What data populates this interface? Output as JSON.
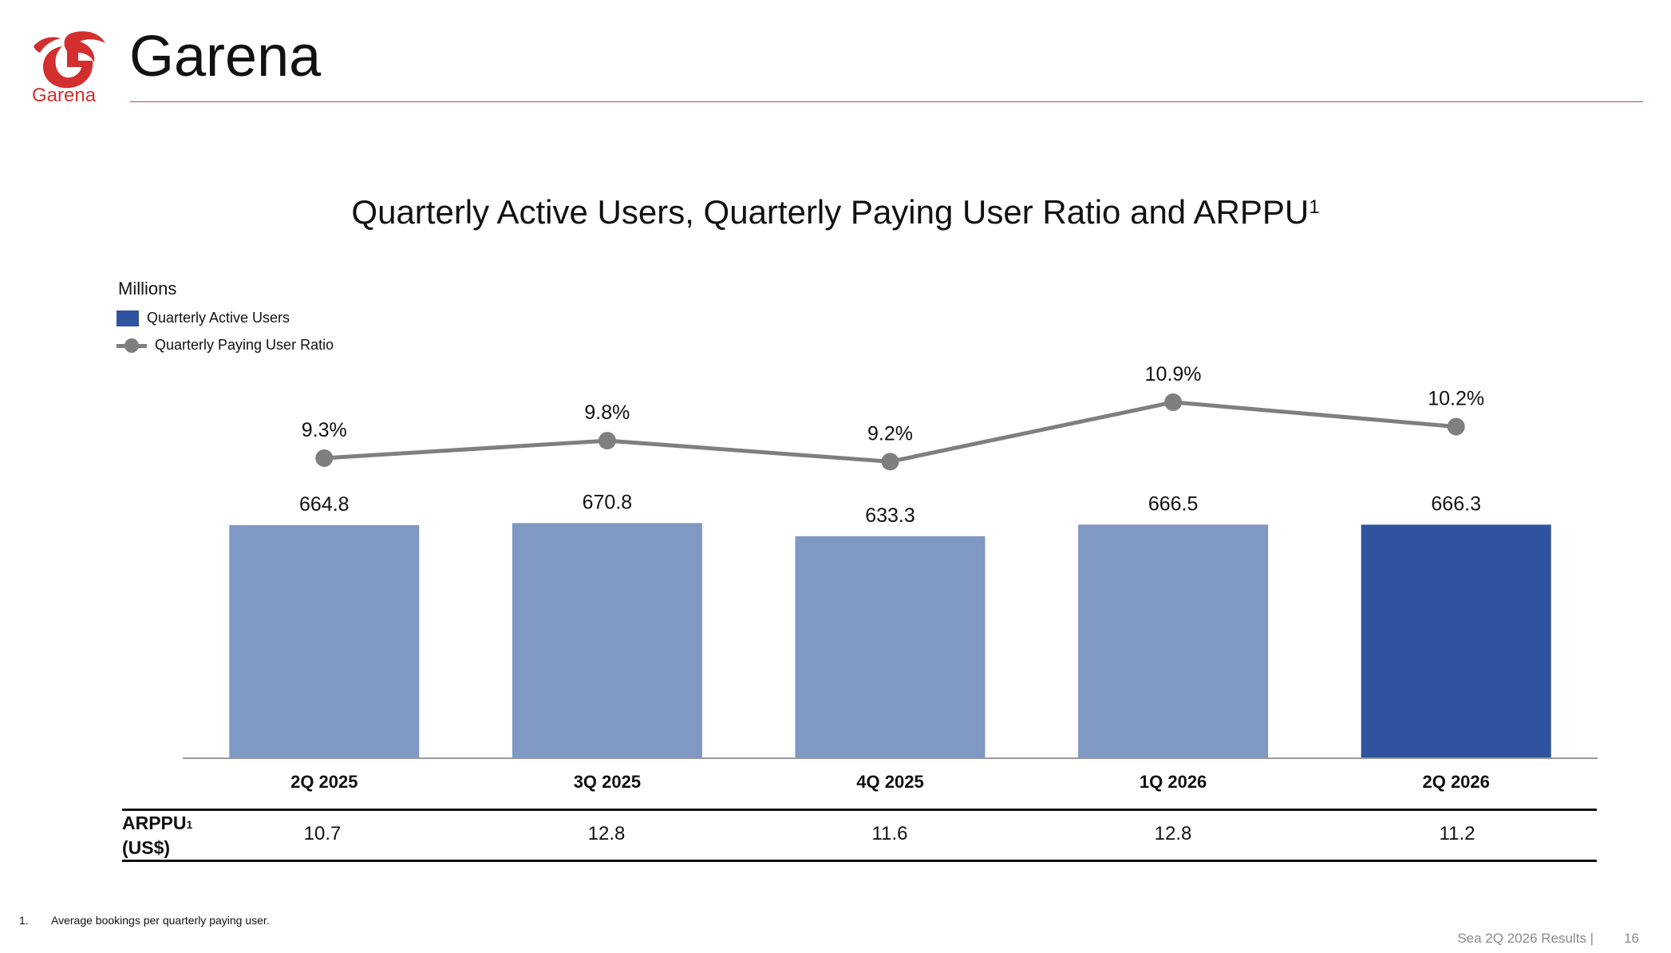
{
  "header": {
    "brand": "Garena",
    "logo_text": "Garena",
    "accent_color": "#e23b3b"
  },
  "chart_data": {
    "type": "bar",
    "title": "Quarterly Active Users, Quarterly Paying User Ratio and ARPPU",
    "title_superscript": "1",
    "units": "Millions",
    "categories": [
      "2Q 2025",
      "3Q 2025",
      "4Q 2025",
      "1Q 2026",
      "2Q 2026"
    ],
    "series": [
      {
        "name": "Quarterly Active Users",
        "values": [
          664.8,
          670.8,
          633.3,
          666.5,
          666.3
        ],
        "labels": [
          "664.8",
          "670.8",
          "633.3",
          "666.5",
          "666.3"
        ],
        "colors": [
          "#7f98c4",
          "#7f98c4",
          "#7f98c4",
          "#7f98c4",
          "#2f539e"
        ]
      },
      {
        "name": "Quarterly Paying User Ratio",
        "type": "line",
        "values": [
          9.3,
          9.8,
          9.2,
          10.9,
          10.2
        ],
        "labels": [
          "9.3%",
          "9.8%",
          "9.2%",
          "10.9%",
          "10.2%"
        ],
        "color": "#7f7f7f"
      }
    ],
    "legend_position": "top-left",
    "grid": false
  },
  "arppu_table": {
    "label_line1": "ARPPU",
    "label_superscript": "1",
    "label_line2": "(US$)",
    "values": [
      "10.7",
      "12.8",
      "11.6",
      "12.8",
      "11.2"
    ]
  },
  "footnote": {
    "number": "1.",
    "text": "Average bookings per quarterly paying user."
  },
  "footer": {
    "source": "Sea 2Q 2026 Results |",
    "page": "16"
  }
}
